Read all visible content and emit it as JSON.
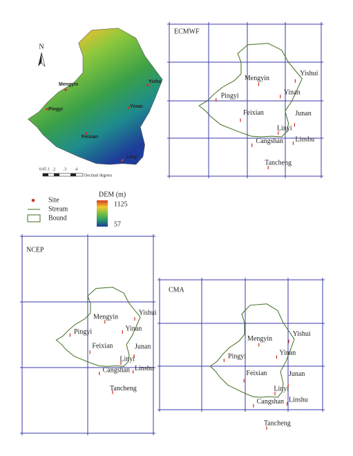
{
  "dem_map": {
    "north": "N",
    "sites": [
      "Mengyin",
      "Yishu",
      "Pingyi",
      "Yinan",
      "Feixian",
      "Linyi"
    ],
    "scale_labels": [
      "0.05",
      ".1",
      ".2",
      ".3",
      ".4"
    ],
    "scale_unit": "Decimal degrees"
  },
  "legend": {
    "site": "Site",
    "stream": "Stream",
    "bound": "Bound",
    "dem_title": "DEM (m)",
    "dem_max": "1125",
    "dem_min": "57"
  },
  "panels": [
    {
      "title": "ECMWF",
      "sites": [
        "Yishui",
        "Mengyin",
        "Yinan",
        "Pingyi",
        "Feixian",
        "Junan",
        "Linyi",
        "Linshu",
        "Cangshan",
        "Tancheng"
      ]
    },
    {
      "title": "NCEP",
      "sites": [
        "Yishui",
        "Mengyin",
        "Yinan",
        "Pingyi",
        "Feixian",
        "Junan",
        "Linyi",
        "Linshu",
        "Cangshan",
        "Tancheng"
      ]
    },
    {
      "title": "CMA",
      "sites": [
        "Yishui",
        "Mengyin",
        "Yinan",
        "Pingyi",
        "Feixian",
        "Junan",
        "Linyi",
        "Linshu",
        "Cangshan",
        "Tancheng"
      ]
    }
  ]
}
